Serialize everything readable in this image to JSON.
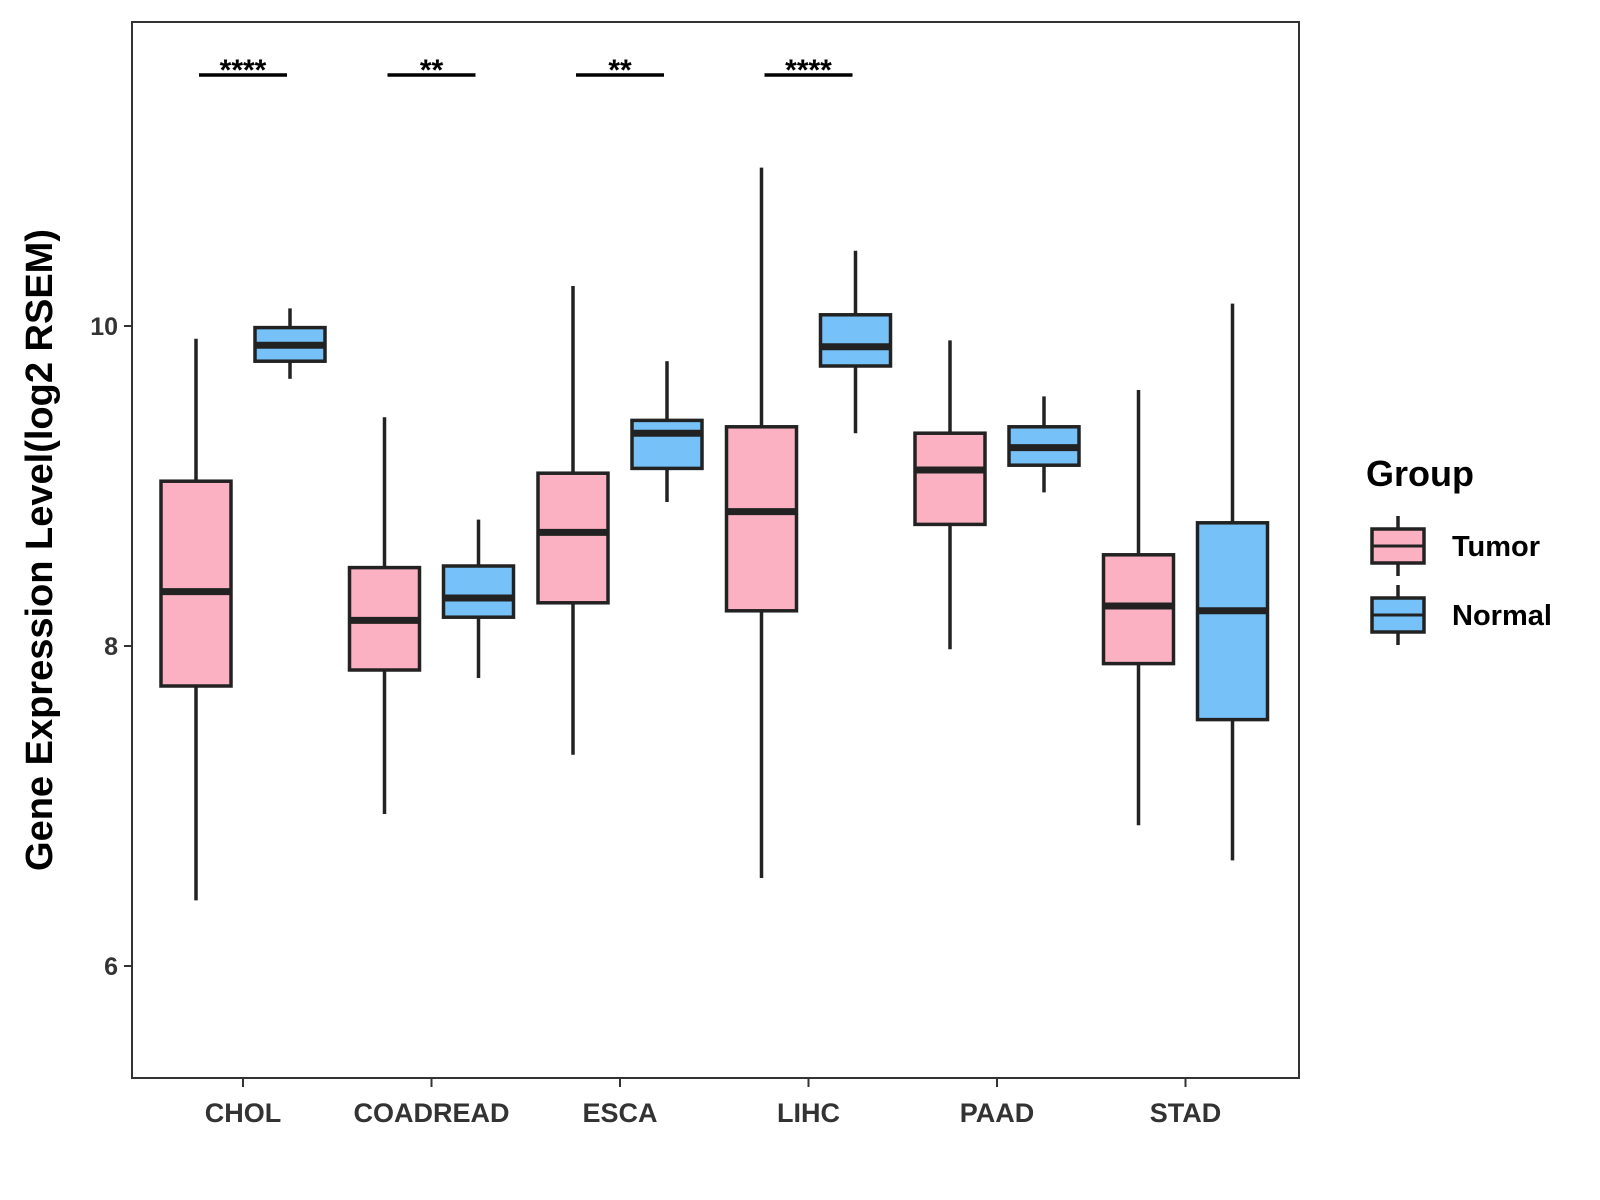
{
  "chart_data": {
    "type": "boxplot",
    "title": "",
    "xlabel": "",
    "ylabel": "Gene Expression Level(log2 RSEM)",
    "ylim": [
      5.3,
      11.9
    ],
    "yticks": [
      6,
      8,
      10
    ],
    "categories": [
      "CHOL",
      "COADREAD",
      "ESCA",
      "LIHC",
      "PAAD",
      "STAD"
    ],
    "legend": {
      "title": "Group",
      "position": "right",
      "entries": [
        {
          "name": "Tumor",
          "color": "#FBB1C2"
        },
        {
          "name": "Normal",
          "color": "#76C2F8"
        }
      ]
    },
    "series": [
      {
        "name": "Tumor",
        "color": "#FBB1C2",
        "boxes": [
          {
            "category": "CHOL",
            "min": 6.41,
            "q1": 7.75,
            "median": 8.34,
            "q3": 9.03,
            "max": 9.92
          },
          {
            "category": "COADREAD",
            "min": 6.95,
            "q1": 7.85,
            "median": 8.16,
            "q3": 8.49,
            "max": 9.43
          },
          {
            "category": "ESCA",
            "min": 7.32,
            "q1": 8.27,
            "median": 8.71,
            "q3": 9.08,
            "max": 10.25
          },
          {
            "category": "LIHC",
            "min": 6.55,
            "q1": 8.22,
            "median": 8.84,
            "q3": 9.37,
            "max": 10.99
          },
          {
            "category": "PAAD",
            "min": 7.98,
            "q1": 8.76,
            "median": 9.1,
            "q3": 9.33,
            "max": 9.91
          },
          {
            "category": "STAD",
            "min": 6.88,
            "q1": 7.89,
            "median": 8.25,
            "q3": 8.57,
            "max": 9.6
          }
        ]
      },
      {
        "name": "Normal",
        "color": "#76C2F8",
        "boxes": [
          {
            "category": "CHOL",
            "min": 9.67,
            "q1": 9.78,
            "median": 9.88,
            "q3": 9.99,
            "max": 10.11
          },
          {
            "category": "COADREAD",
            "min": 7.8,
            "q1": 8.18,
            "median": 8.3,
            "q3": 8.5,
            "max": 8.79
          },
          {
            "category": "ESCA",
            "min": 8.9,
            "q1": 9.11,
            "median": 9.33,
            "q3": 9.41,
            "max": 9.78
          },
          {
            "category": "LIHC",
            "min": 9.33,
            "q1": 9.75,
            "median": 9.87,
            "q3": 10.07,
            "max": 10.47
          },
          {
            "category": "PAAD",
            "min": 8.96,
            "q1": 9.13,
            "median": 9.24,
            "q3": 9.37,
            "max": 9.56
          },
          {
            "category": "STAD",
            "min": 6.66,
            "q1": 7.54,
            "median": 8.22,
            "q3": 8.77,
            "max": 10.14
          }
        ]
      }
    ],
    "significance": [
      {
        "category": "CHOL",
        "label": "****"
      },
      {
        "category": "COADREAD",
        "label": "**"
      },
      {
        "category": "ESCA",
        "label": "**"
      },
      {
        "category": "LIHC",
        "label": "****"
      }
    ]
  }
}
